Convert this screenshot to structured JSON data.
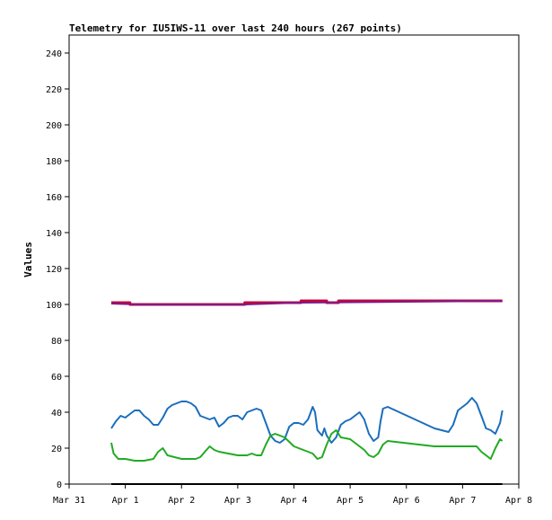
{
  "chart_data": {
    "type": "line",
    "title": "Telemetry for IU5IWS-11 over last 240 hours (267 points)",
    "ylabel": "Values",
    "xlabel": "",
    "ylim": [
      0,
      250
    ],
    "yticks": [
      0,
      20,
      40,
      60,
      80,
      100,
      120,
      140,
      160,
      180,
      200,
      220,
      240
    ],
    "xlim": [
      "2025-03-31T00:00",
      "2025-04-08T00:00"
    ],
    "xticks": [
      {
        "value": "2025-03-31T00:00",
        "label": "Mar 31"
      },
      {
        "value": "2025-04-01T00:00",
        "label": "Apr 1"
      },
      {
        "value": "2025-04-02T00:00",
        "label": "Apr 2"
      },
      {
        "value": "2025-04-03T00:00",
        "label": "Apr 3"
      },
      {
        "value": "2025-04-04T00:00",
        "label": "Apr 4"
      },
      {
        "value": "2025-04-05T00:00",
        "label": "Apr 5"
      },
      {
        "value": "2025-04-06T00:00",
        "label": "Apr 6"
      },
      {
        "value": "2025-04-07T00:00",
        "label": "Apr 7"
      },
      {
        "value": "2025-04-08T00:00",
        "label": "Apr 8"
      }
    ],
    "grid": false,
    "legend": "none",
    "series": [
      {
        "color": "#cc0033",
        "width": 3,
        "x": [
          "2025-03-31T18:00",
          "2025-04-01T02:00",
          "2025-04-01T02:00",
          "2025-04-03T03:00",
          "2025-04-03T03:00",
          "2025-04-03T07:00",
          "2025-04-03T07:00",
          "2025-04-04T03:00",
          "2025-04-04T03:00",
          "2025-04-04T08:00",
          "2025-04-04T08:00",
          "2025-04-04T14:00",
          "2025-04-04T14:00",
          "2025-04-04T19:00",
          "2025-04-04T19:00",
          "2025-04-07T17:00"
        ],
        "y": [
          101,
          101,
          100,
          100,
          101,
          101,
          101,
          101,
          102,
          102,
          102,
          102,
          101,
          101,
          102,
          102
        ]
      },
      {
        "color": "#7b1c8c",
        "width": 2,
        "x": [
          "2025-03-31T18:00",
          "2025-04-01T06:00",
          "2025-04-03T03:00",
          "2025-04-04T02:00",
          "2025-04-07T17:00"
        ],
        "y": [
          100.5,
          100,
          100,
          101,
          102
        ]
      },
      {
        "color": "#1a6ebd",
        "width": 2,
        "x": [
          "2025-03-31T18:00",
          "2025-03-31T20:00",
          "2025-03-31T22:00",
          "2025-04-01T00:00",
          "2025-04-01T02:00",
          "2025-04-01T04:00",
          "2025-04-01T06:00",
          "2025-04-01T08:00",
          "2025-04-01T10:00",
          "2025-04-01T12:00",
          "2025-04-01T14:00",
          "2025-04-01T16:00",
          "2025-04-01T18:00",
          "2025-04-01T20:00",
          "2025-04-01T22:00",
          "2025-04-02T00:00",
          "2025-04-02T02:00",
          "2025-04-02T04:00",
          "2025-04-02T06:00",
          "2025-04-02T08:00",
          "2025-04-02T10:00",
          "2025-04-02T12:00",
          "2025-04-02T14:00",
          "2025-04-02T16:00",
          "2025-04-02T18:00",
          "2025-04-02T20:00",
          "2025-04-02T22:00",
          "2025-04-03T00:00",
          "2025-04-03T02:00",
          "2025-04-03T04:00",
          "2025-04-03T06:00",
          "2025-04-03T08:00",
          "2025-04-03T10:00",
          "2025-04-03T12:00",
          "2025-04-03T14:00",
          "2025-04-03T16:00",
          "2025-04-03T18:00",
          "2025-04-03T20:00",
          "2025-04-03T22:00",
          "2025-04-04T00:00",
          "2025-04-04T02:00",
          "2025-04-04T04:00",
          "2025-04-04T06:00",
          "2025-04-04T08:00",
          "2025-04-04T09:00",
          "2025-04-04T10:00",
          "2025-04-04T12:00",
          "2025-04-04T13:00",
          "2025-04-04T14:00",
          "2025-04-04T16:00",
          "2025-04-04T18:00",
          "2025-04-04T20:00",
          "2025-04-04T22:00",
          "2025-04-05T00:00",
          "2025-04-05T02:00",
          "2025-04-05T04:00",
          "2025-04-05T06:00",
          "2025-04-05T08:00",
          "2025-04-05T10:00",
          "2025-04-05T12:00",
          "2025-04-05T13:00",
          "2025-04-05T14:00",
          "2025-04-05T16:00",
          "2025-04-06T12:00",
          "2025-04-06T18:00",
          "2025-04-06T20:00",
          "2025-04-06T22:00",
          "2025-04-07T00:00",
          "2025-04-07T02:00",
          "2025-04-07T04:00",
          "2025-04-07T06:00",
          "2025-04-07T08:00",
          "2025-04-07T10:00",
          "2025-04-07T12:00",
          "2025-04-07T14:00",
          "2025-04-07T16:00",
          "2025-04-07T17:00"
        ],
        "y": [
          31,
          35,
          38,
          37,
          39,
          41,
          41,
          38,
          36,
          33,
          33,
          37,
          42,
          44,
          45,
          46,
          46,
          45,
          43,
          38,
          37,
          36,
          37,
          32,
          34,
          37,
          38,
          38,
          36,
          40,
          41,
          42,
          41,
          34,
          27,
          24,
          23,
          25,
          32,
          34,
          34,
          33,
          36,
          43,
          40,
          30,
          27,
          31,
          27,
          23,
          26,
          33,
          35,
          36,
          38,
          40,
          36,
          28,
          24,
          26,
          35,
          42,
          43,
          31,
          29,
          33,
          41,
          43,
          45,
          48,
          45,
          38,
          31,
          30,
          28,
          34,
          41
        ]
      },
      {
        "color": "#22aa22",
        "width": 2,
        "x": [
          "2025-03-31T18:00",
          "2025-03-31T19:00",
          "2025-03-31T21:00",
          "2025-04-01T00:00",
          "2025-04-01T04:00",
          "2025-04-01T08:00",
          "2025-04-01T12:00",
          "2025-04-01T14:00",
          "2025-04-01T16:00",
          "2025-04-01T18:00",
          "2025-04-02T00:00",
          "2025-04-02T06:00",
          "2025-04-02T08:00",
          "2025-04-02T10:00",
          "2025-04-02T12:00",
          "2025-04-02T14:00",
          "2025-04-02T16:00",
          "2025-04-02T20:00",
          "2025-04-03T00:00",
          "2025-04-03T04:00",
          "2025-04-03T06:00",
          "2025-04-03T08:00",
          "2025-04-03T10:00",
          "2025-04-03T12:00",
          "2025-04-03T14:00",
          "2025-04-03T16:00",
          "2025-04-03T20:00",
          "2025-04-04T00:00",
          "2025-04-04T04:00",
          "2025-04-04T06:00",
          "2025-04-04T08:00",
          "2025-04-04T10:00",
          "2025-04-04T12:00",
          "2025-04-04T14:00",
          "2025-04-04T16:00",
          "2025-04-04T18:00",
          "2025-04-04T20:00",
          "2025-04-05T00:00",
          "2025-04-05T04:00",
          "2025-04-05T06:00",
          "2025-04-05T08:00",
          "2025-04-05T10:00",
          "2025-04-05T12:00",
          "2025-04-05T14:00",
          "2025-04-05T16:00",
          "2025-04-06T12:00",
          "2025-04-06T20:00",
          "2025-04-07T00:00",
          "2025-04-07T06:00",
          "2025-04-07T08:00",
          "2025-04-07T10:00",
          "2025-04-07T12:00",
          "2025-04-07T14:00",
          "2025-04-07T16:00",
          "2025-04-07T17:00"
        ],
        "y": [
          23,
          17,
          14,
          14,
          13,
          13,
          14,
          18,
          20,
          16,
          14,
          14,
          15,
          18,
          21,
          19,
          18,
          17,
          16,
          16,
          17,
          16,
          16,
          22,
          27,
          28,
          26,
          21,
          19,
          18,
          17,
          14,
          15,
          22,
          28,
          30,
          26,
          25,
          21,
          19,
          16,
          15,
          17,
          22,
          24,
          21,
          21,
          21,
          21,
          18,
          16,
          14,
          20,
          25,
          24
        ]
      },
      {
        "color": "#000000",
        "width": 2,
        "x": [
          "2025-03-31T18:00",
          "2025-04-07T17:00"
        ],
        "y": [
          0,
          0
        ]
      }
    ]
  }
}
